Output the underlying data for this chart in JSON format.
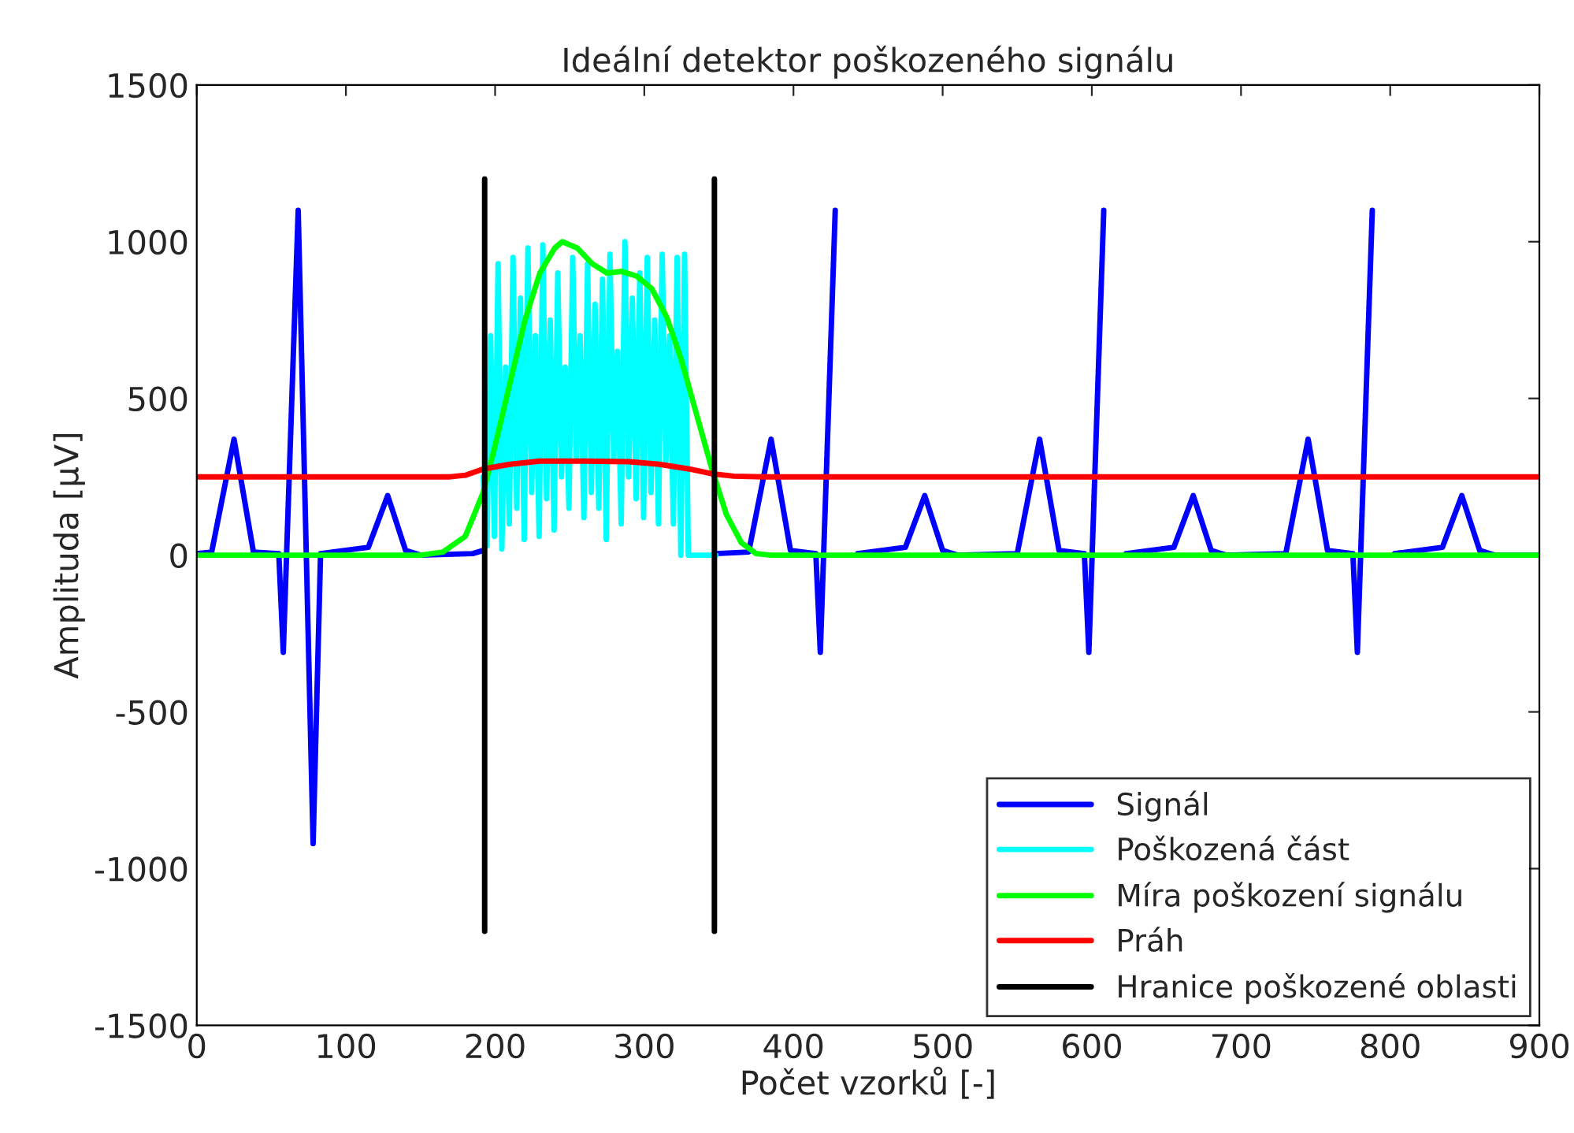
{
  "chart_data": {
    "type": "line",
    "title": "Ideální detektor poškozeného signálu",
    "xlabel": "Počet vzorků [-]",
    "ylabel": "Amplituda [µV]",
    "xlim": [
      0,
      900
    ],
    "xticks": [
      0,
      100,
      200,
      300,
      400,
      500,
      600,
      700,
      800,
      900
    ],
    "ylim": [
      -1500,
      1500
    ],
    "yticks": [
      -1500,
      -1000,
      -500,
      0,
      500,
      1000,
      1500
    ],
    "grid": false,
    "legend": "bottom right",
    "marker": "none",
    "line_style": "solid",
    "series": [
      {
        "name": "Signál",
        "color": "#0000ff",
        "x": [
          0,
          10,
          25,
          38,
          55,
          58,
          68,
          78,
          83,
          115,
          128,
          140,
          150,
          185,
          192,
          270,
          348,
          370,
          385,
          398,
          415,
          418,
          428,
          438,
          443,
          475,
          488,
          500,
          510,
          550,
          565,
          578,
          595,
          598,
          608,
          618,
          623,
          655,
          668,
          680,
          690,
          730,
          745,
          758,
          775,
          778,
          788,
          798,
          803,
          835,
          848,
          860,
          870,
          900
        ],
        "values": [
          5,
          10,
          370,
          10,
          5,
          -310,
          1100,
          -920,
          5,
          25,
          190,
          15,
          0,
          5,
          15,
          null,
          5,
          10,
          370,
          15,
          5,
          -310,
          1100,
          null,
          5,
          25,
          190,
          15,
          0,
          5,
          370,
          15,
          5,
          -310,
          1100,
          null,
          5,
          25,
          190,
          15,
          0,
          5,
          370,
          15,
          5,
          -310,
          1100,
          null,
          5,
          25,
          190,
          15,
          0,
          0
        ]
      },
      {
        "name": "Poškozená část",
        "color": "#00ffff",
        "x": [
          192,
          194.5,
          197,
          199.5,
          202,
          204.5,
          207,
          209.5,
          212,
          214.5,
          217,
          219.5,
          222,
          224.5,
          227,
          229.5,
          232,
          234.5,
          237,
          239.5,
          242,
          244.5,
          247,
          249.5,
          252,
          254.5,
          257,
          259.5,
          262,
          264.5,
          267,
          269.5,
          272,
          274.5,
          277,
          279.5,
          282,
          284.5,
          287,
          289.5,
          292,
          294.5,
          297,
          299.5,
          302,
          304.5,
          307,
          309.5,
          312,
          314.5,
          317,
          319.5,
          322,
          324.5,
          327,
          329.5,
          348
        ],
        "values": [
          250,
          30,
          700,
          60,
          930,
          20,
          600,
          100,
          950,
          150,
          820,
          50,
          980,
          200,
          700,
          60,
          990,
          180,
          750,
          80,
          900,
          250,
          600,
          150,
          950,
          300,
          700,
          120,
          930,
          200,
          800,
          150,
          880,
          50,
          960,
          300,
          650,
          100,
          1000,
          250,
          820,
          180,
          900,
          120,
          950,
          200,
          750,
          100,
          960,
          300,
          700,
          100,
          950,
          0,
          960,
          0,
          0
        ]
      },
      {
        "name": "Míra poškození signálu",
        "color": "#00ff00",
        "x": [
          0,
          150,
          165,
          180,
          192,
          200,
          210,
          220,
          230,
          240,
          245,
          255,
          265,
          275,
          285,
          295,
          305,
          315,
          325,
          335,
          345,
          355,
          365,
          375,
          385,
          900
        ],
        "values": [
          0,
          0,
          10,
          60,
          200,
          350,
          550,
          750,
          900,
          980,
          1000,
          980,
          930,
          900,
          905,
          890,
          850,
          760,
          620,
          450,
          280,
          130,
          40,
          5,
          0,
          0
        ]
      },
      {
        "name": "Práh",
        "color": "#ff0000",
        "x": [
          0,
          170,
          180,
          192,
          210,
          230,
          260,
          290,
          310,
          330,
          345,
          360,
          380,
          900
        ],
        "values": [
          250,
          250,
          255,
          275,
          290,
          300,
          300,
          298,
          290,
          275,
          260,
          252,
          250,
          250
        ]
      },
      {
        "name": "Hranice poškozené oblasti",
        "color": "#000000",
        "x": [
          193,
          193
        ],
        "values": [
          -1200,
          1200
        ]
      },
      {
        "color": "#000000",
        "x": [
          347,
          347
        ],
        "values": [
          -1200,
          1200
        ]
      }
    ]
  }
}
